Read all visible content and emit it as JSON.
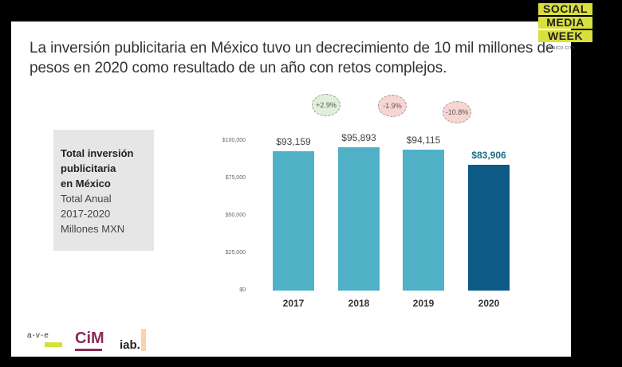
{
  "header": {
    "title_line1": "La inversión publicitaria en México tuvo un decrecimiento de 10 mil millones de",
    "title_line2": "pesos en 2020 como resultado de un año con retos complejos."
  },
  "brand": {
    "lines": [
      "SOCIAL",
      "MEDIA",
      "WEEK"
    ],
    "city": "MEXICO CITY",
    "color": "#d9df3c"
  },
  "infobox": {
    "bold_lines": [
      "Total inversión",
      "publicitaria",
      "en México"
    ],
    "normal_lines": [
      "Total Anual",
      "2017-2020",
      "Millones MXN"
    ]
  },
  "footer_logos": [
    "a-v-e",
    "CiM",
    "iab."
  ],
  "chart_data": {
    "type": "bar",
    "title": "Total inversión publicitaria en México",
    "subtitle": "Total Anual 2017-2020 Millones MXN",
    "xlabel": "",
    "ylabel": "Millones MXN",
    "categories": [
      "2017",
      "2018",
      "2019",
      "2020"
    ],
    "values": [
      93159,
      95893,
      94115,
      83906
    ],
    "value_labels": [
      "$93,159",
      "$95,893",
      "$94,115",
      "$83,906"
    ],
    "ylim": [
      0,
      100000
    ],
    "yticks": [
      "$0",
      "$25,000",
      "$50,000",
      "$75,000",
      "$100,000"
    ],
    "grid": false,
    "legend": "none",
    "colors": [
      "#4fb0c6",
      "#4fb0c6",
      "#4fb0c6",
      "#0c5a85"
    ],
    "annotations": [
      {
        "label": "+2.9%",
        "between": [
          "2017",
          "2018"
        ],
        "color": "#dff0da"
      },
      {
        "label": "-1.9%",
        "between": [
          "2018",
          "2019"
        ],
        "color": "#f7d6d2"
      },
      {
        "label": "-10.8%",
        "between": [
          "2019",
          "2020"
        ],
        "color": "#f7d6d2"
      }
    ]
  }
}
